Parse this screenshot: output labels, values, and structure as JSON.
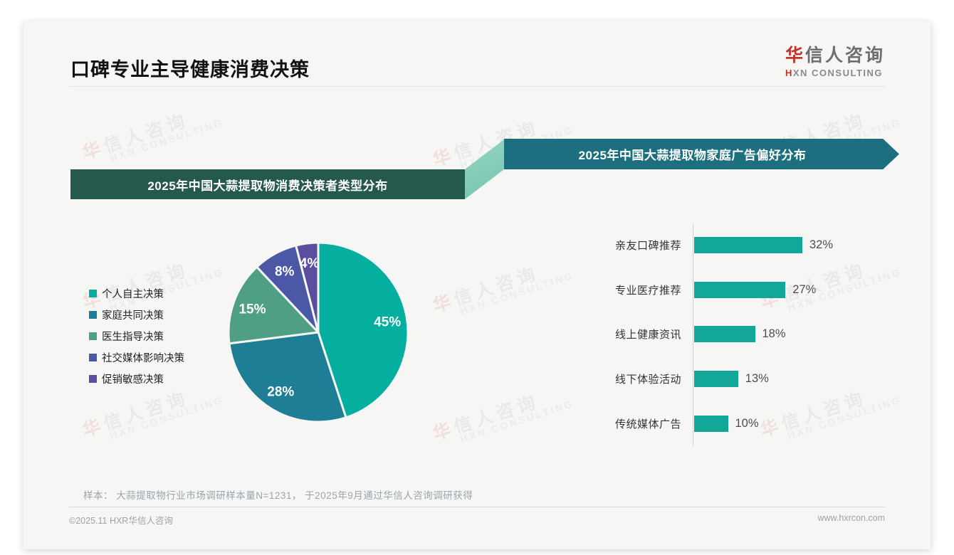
{
  "page": {
    "title": "口碑专业主导健康消费决策",
    "logo": {
      "brand_first_char": "华",
      "brand_rest": "信人咨询",
      "subtitle_prefix": "H",
      "subtitle_rest": "XN CONSULTING"
    },
    "watermark": {
      "line1_first_char": "华",
      "line1_rest": "信人咨询",
      "line2": "HXN CONSULTING"
    },
    "footnote": "样本： 大蒜提取物行业市场调研样本量N=1231， 于2025年9月通过华信人咨询调研获得",
    "footer": {
      "copyright": "©2025.11 HXR华信人咨询",
      "website": "www.hxrcon.com"
    }
  },
  "chart_data": [
    {
      "type": "pie",
      "title": "2025年中国大蒜提取物消费决策者类型分布",
      "labels": [
        "个人自主决策",
        "家庭共同决策",
        "医生指导决策",
        "社交媒体影响决策",
        "促销敏感决策"
      ],
      "values": [
        45,
        28,
        15,
        8,
        4
      ],
      "unit": "%",
      "colors": [
        "#05afa0",
        "#1e7e95",
        "#4f9f85",
        "#4a58a6",
        "#5c4e9e"
      ],
      "start_angle_deg": 0,
      "direction": "clockwise",
      "legend_position": "left",
      "slice_label_color": "#ffffff"
    },
    {
      "type": "bar",
      "title": "2025年中国大蒜提取物家庭广告偏好分布",
      "orientation": "horizontal",
      "categories": [
        "亲友口碑推荐",
        "专业医疗推荐",
        "线上健康资讯",
        "线下体验活动",
        "传统媒体广告"
      ],
      "values": [
        32,
        27,
        18,
        13,
        10
      ],
      "unit": "%",
      "bar_color": "#13a79a",
      "xlim": [
        0,
        35
      ],
      "grid": false,
      "value_labels": "outside-right"
    }
  ]
}
